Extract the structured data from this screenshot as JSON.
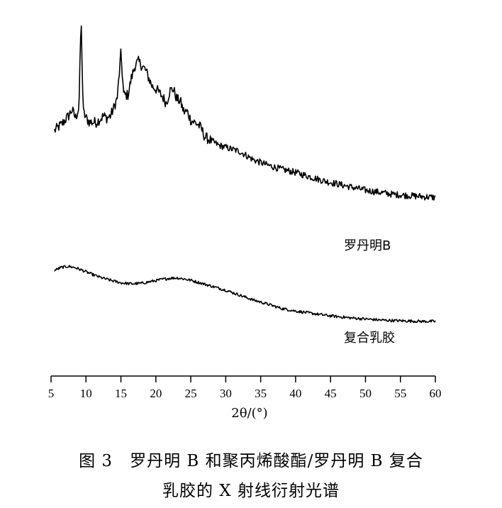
{
  "figure": {
    "caption_line1": "图 3　罗丹明 B 和聚丙烯酸酯/罗丹明 B 复合",
    "caption_line2": "乳胶的 X 射线衍射光谱"
  },
  "chart_data": {
    "type": "line",
    "xlabel": "2θ/(°)",
    "xlim": [
      5,
      60
    ],
    "x_ticks": [
      "5",
      "10",
      "15",
      "20",
      "25",
      "30",
      "35",
      "40",
      "45",
      "50",
      "55",
      "60"
    ],
    "ylabel": "",
    "y_axis_shown": false,
    "grid": false,
    "line_color": "#000000",
    "series": [
      {
        "name": "罗丹明B",
        "x": [
          5.5,
          6.5,
          7.5,
          8.0,
          8.5,
          9.0,
          9.3,
          9.6,
          10.0,
          10.5,
          11.5,
          12.5,
          13.0,
          13.5,
          14.0,
          14.5,
          15.0,
          15.4,
          16.0,
          16.5,
          17.0,
          17.5,
          18.0,
          18.5,
          19.0,
          19.5,
          20.0,
          21.0,
          21.5,
          22.0,
          22.5,
          23.0,
          23.5,
          24.0,
          24.5,
          25.0,
          25.5,
          26.0,
          26.5,
          27.0,
          28.0,
          29.0,
          30.0,
          31.0,
          32.0,
          33.0,
          34.0,
          36.0,
          38.0,
          40.0,
          42.0,
          44.0,
          46.0,
          48.0,
          50.0,
          52.0,
          54.0,
          56.0,
          58.0,
          60.0
        ],
        "values": [
          41,
          44,
          48,
          51,
          47,
          52,
          95,
          50,
          47,
          45,
          45,
          48,
          47,
          48,
          52,
          57,
          78,
          58,
          58,
          66,
          72,
          74,
          72,
          70,
          66,
          62,
          61,
          57,
          54,
          60,
          61,
          56,
          55,
          50,
          50,
          46,
          45,
          44,
          42,
          38,
          36,
          34,
          33,
          32,
          31,
          29,
          27,
          24.5,
          22.5,
          21,
          19,
          17,
          15.5,
          14,
          12.5,
          11.5,
          10.5,
          10,
          9.5,
          9
        ]
      },
      {
        "name": "复合乳胶",
        "x": [
          5.5,
          6.5,
          7.5,
          8.5,
          9.5,
          10.5,
          12.0,
          13.5,
          15.0,
          16.5,
          18.0,
          19.5,
          21.0,
          22.0,
          23.0,
          24.0,
          25.0,
          26.5,
          28.0,
          30.0,
          32.0,
          34.0,
          36.0,
          38.0,
          40.0,
          42.0,
          44.0,
          46.0,
          48.0,
          50.0,
          52.0,
          54.0,
          56.0,
          58.0,
          60.0
        ],
        "values": [
          5,
          6.5,
          7,
          6.3,
          5,
          3.5,
          1.5,
          0,
          -1.3,
          -1.8,
          -1.5,
          -0.5,
          0.5,
          1,
          1.2,
          0.7,
          0,
          -1.5,
          -3,
          -5,
          -7.5,
          -10,
          -12,
          -14.2,
          -15.5,
          -16.5,
          -17.5,
          -18.3,
          -19,
          -19.5,
          -20,
          -20.3,
          -20.5,
          -20.7,
          -20.7
        ]
      }
    ]
  }
}
